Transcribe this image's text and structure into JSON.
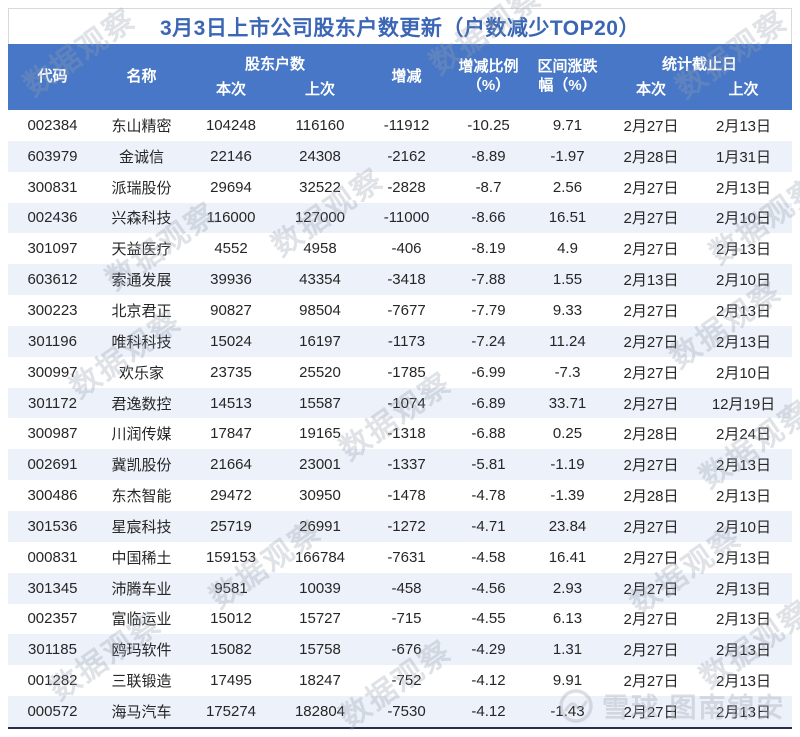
{
  "title": "3月3日上市公司股东户数更新（户数减少TOP20）",
  "colors": {
    "header_bg": "#4777c6",
    "title_color": "#3a66b5",
    "alt_row_bg": "#edf1fa",
    "bottom_border": "#25304c",
    "header_text": "#ffffff"
  },
  "watermark": {
    "diagonal_text": "数据观察",
    "xueqiu_label": "雪球",
    "xueqiu_user": "图南锦安"
  },
  "chart_data": {
    "type": "table",
    "title": "3月3日上市公司股东户数更新（户数减少TOP20）",
    "header": {
      "code": "代码",
      "name": "名称",
      "holders_group": "股东户数",
      "current": "本次",
      "previous": "上次",
      "change": "增减",
      "change_pct_line1": "增减比例",
      "change_pct_line2": "（%）",
      "range_pct_line1": "区间涨跌",
      "range_pct_line2": "幅（%）",
      "dates_group": "统计截止日",
      "date_current": "本次",
      "date_previous": "上次"
    },
    "columns": [
      "代码",
      "名称",
      "股东户数-本次",
      "股东户数-上次",
      "增减",
      "增减比例（%）",
      "区间涨跌幅（%）",
      "统计截止日-本次",
      "统计截止日-上次"
    ],
    "rows": [
      {
        "code": "002384",
        "name": "东山精密",
        "current": "104248",
        "previous": "116160",
        "change": "-11912",
        "change_pct": "-10.25",
        "range_pct": "9.71",
        "date_current": "2月27日",
        "date_previous": "2月13日"
      },
      {
        "code": "603979",
        "name": "金诚信",
        "current": "22146",
        "previous": "24308",
        "change": "-2162",
        "change_pct": "-8.89",
        "range_pct": "-1.97",
        "date_current": "2月28日",
        "date_previous": "1月31日"
      },
      {
        "code": "300831",
        "name": "派瑞股份",
        "current": "29694",
        "previous": "32522",
        "change": "-2828",
        "change_pct": "-8.7",
        "range_pct": "2.56",
        "date_current": "2月27日",
        "date_previous": "2月13日"
      },
      {
        "code": "002436",
        "name": "兴森科技",
        "current": "116000",
        "previous": "127000",
        "change": "-11000",
        "change_pct": "-8.66",
        "range_pct": "16.51",
        "date_current": "2月27日",
        "date_previous": "2月10日"
      },
      {
        "code": "301097",
        "name": "天益医疗",
        "current": "4552",
        "previous": "4958",
        "change": "-406",
        "change_pct": "-8.19",
        "range_pct": "4.9",
        "date_current": "2月27日",
        "date_previous": "2月13日"
      },
      {
        "code": "603612",
        "name": "索通发展",
        "current": "39936",
        "previous": "43354",
        "change": "-3418",
        "change_pct": "-7.88",
        "range_pct": "1.55",
        "date_current": "2月13日",
        "date_previous": "2月10日"
      },
      {
        "code": "300223",
        "name": "北京君正",
        "current": "90827",
        "previous": "98504",
        "change": "-7677",
        "change_pct": "-7.79",
        "range_pct": "9.33",
        "date_current": "2月27日",
        "date_previous": "2月13日"
      },
      {
        "code": "301196",
        "name": "唯科科技",
        "current": "15024",
        "previous": "16197",
        "change": "-1173",
        "change_pct": "-7.24",
        "range_pct": "11.24",
        "date_current": "2月27日",
        "date_previous": "2月13日"
      },
      {
        "code": "300997",
        "name": "欢乐家",
        "current": "23735",
        "previous": "25520",
        "change": "-1785",
        "change_pct": "-6.99",
        "range_pct": "-7.3",
        "date_current": "2月27日",
        "date_previous": "2月10日"
      },
      {
        "code": "301172",
        "name": "君逸数控",
        "current": "14513",
        "previous": "15587",
        "change": "-1074",
        "change_pct": "-6.89",
        "range_pct": "33.71",
        "date_current": "2月27日",
        "date_previous": "12月19日"
      },
      {
        "code": "300987",
        "name": "川润传媒",
        "current": "17847",
        "previous": "19165",
        "change": "-1318",
        "change_pct": "-6.88",
        "range_pct": "0.25",
        "date_current": "2月28日",
        "date_previous": "2月24日"
      },
      {
        "code": "002691",
        "name": "冀凯股份",
        "current": "21664",
        "previous": "23001",
        "change": "-1337",
        "change_pct": "-5.81",
        "range_pct": "-1.19",
        "date_current": "2月27日",
        "date_previous": "2月13日"
      },
      {
        "code": "300486",
        "name": "东杰智能",
        "current": "29472",
        "previous": "30950",
        "change": "-1478",
        "change_pct": "-4.78",
        "range_pct": "-1.39",
        "date_current": "2月28日",
        "date_previous": "2月13日"
      },
      {
        "code": "301536",
        "name": "星宸科技",
        "current": "25719",
        "previous": "26991",
        "change": "-1272",
        "change_pct": "-4.71",
        "range_pct": "23.84",
        "date_current": "2月27日",
        "date_previous": "2月10日"
      },
      {
        "code": "000831",
        "name": "中国稀土",
        "current": "159153",
        "previous": "166784",
        "change": "-7631",
        "change_pct": "-4.58",
        "range_pct": "16.41",
        "date_current": "2月27日",
        "date_previous": "2月13日"
      },
      {
        "code": "301345",
        "name": "沛腾车业",
        "current": "9581",
        "previous": "10039",
        "change": "-458",
        "change_pct": "-4.56",
        "range_pct": "2.93",
        "date_current": "2月27日",
        "date_previous": "2月13日"
      },
      {
        "code": "002357",
        "name": "富临运业",
        "current": "15012",
        "previous": "15727",
        "change": "-715",
        "change_pct": "-4.55",
        "range_pct": "6.13",
        "date_current": "2月27日",
        "date_previous": "2月13日"
      },
      {
        "code": "301185",
        "name": "鸥玛软件",
        "current": "15082",
        "previous": "15758",
        "change": "-676",
        "change_pct": "-4.29",
        "range_pct": "1.31",
        "date_current": "2月27日",
        "date_previous": "2月13日"
      },
      {
        "code": "001282",
        "name": "三联锻造",
        "current": "17495",
        "previous": "18247",
        "change": "-752",
        "change_pct": "-4.12",
        "range_pct": "9.91",
        "date_current": "2月27日",
        "date_previous": "2月13日"
      },
      {
        "code": "000572",
        "name": "海马汽车",
        "current": "175274",
        "previous": "182804",
        "change": "-7530",
        "change_pct": "-4.12",
        "range_pct": "-1.43",
        "date_current": "2月27日",
        "date_previous": "2月13日"
      }
    ]
  }
}
